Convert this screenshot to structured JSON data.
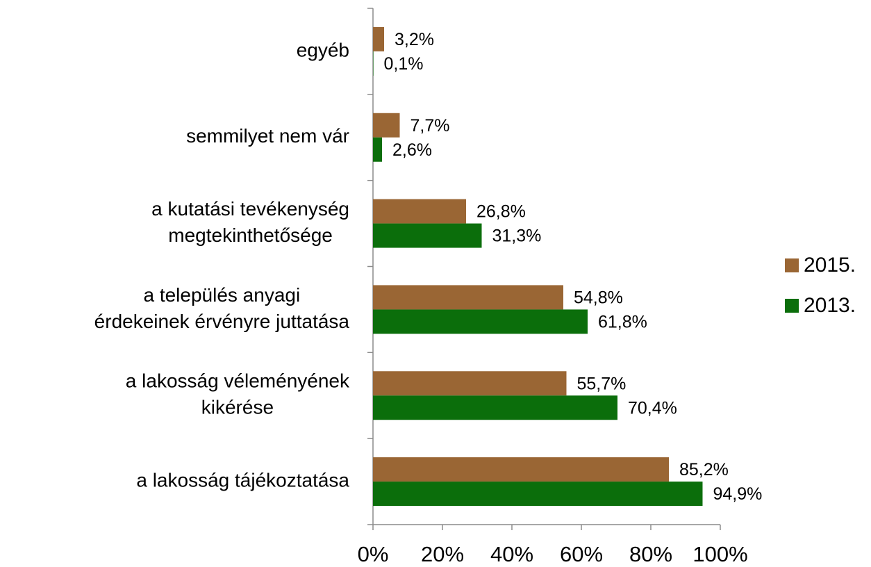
{
  "chart_data": {
    "type": "hbar",
    "categories": [
      [
        "egyéb"
      ],
      [
        "semmilyet nem vár"
      ],
      [
        "a kutatási tevékenység",
        "megtekinthetősége"
      ],
      [
        "a település anyagi",
        "érdekeinek érvényre juttatása"
      ],
      [
        "a lakosság véleményének",
        "kikérése"
      ],
      [
        "a lakosság tájékoztatása"
      ]
    ],
    "series": [
      {
        "name": "2015.",
        "color": "#9a6634",
        "values": [
          3.2,
          7.7,
          26.8,
          54.8,
          55.7,
          85.2
        ],
        "value_labels": [
          "3,2%",
          "7,7%",
          "26,8%",
          "54,8%",
          "55,7%",
          "85,2%"
        ]
      },
      {
        "name": "2013.",
        "color": "#0b6e0b",
        "values": [
          0.1,
          2.6,
          31.3,
          61.8,
          70.4,
          94.9
        ],
        "value_labels": [
          "0,1%",
          "2,6%",
          "31,3%",
          "61,8%",
          "70,4%",
          "94,9%"
        ]
      }
    ],
    "xlim": [
      0,
      100
    ],
    "xticks": [
      {
        "value": 0,
        "label": "0%"
      },
      {
        "value": 20,
        "label": "20%"
      },
      {
        "value": 40,
        "label": "40%"
      },
      {
        "value": 60,
        "label": "60%"
      },
      {
        "value": 80,
        "label": "80%"
      },
      {
        "value": 100,
        "label": "100%"
      }
    ],
    "legend": "right"
  }
}
